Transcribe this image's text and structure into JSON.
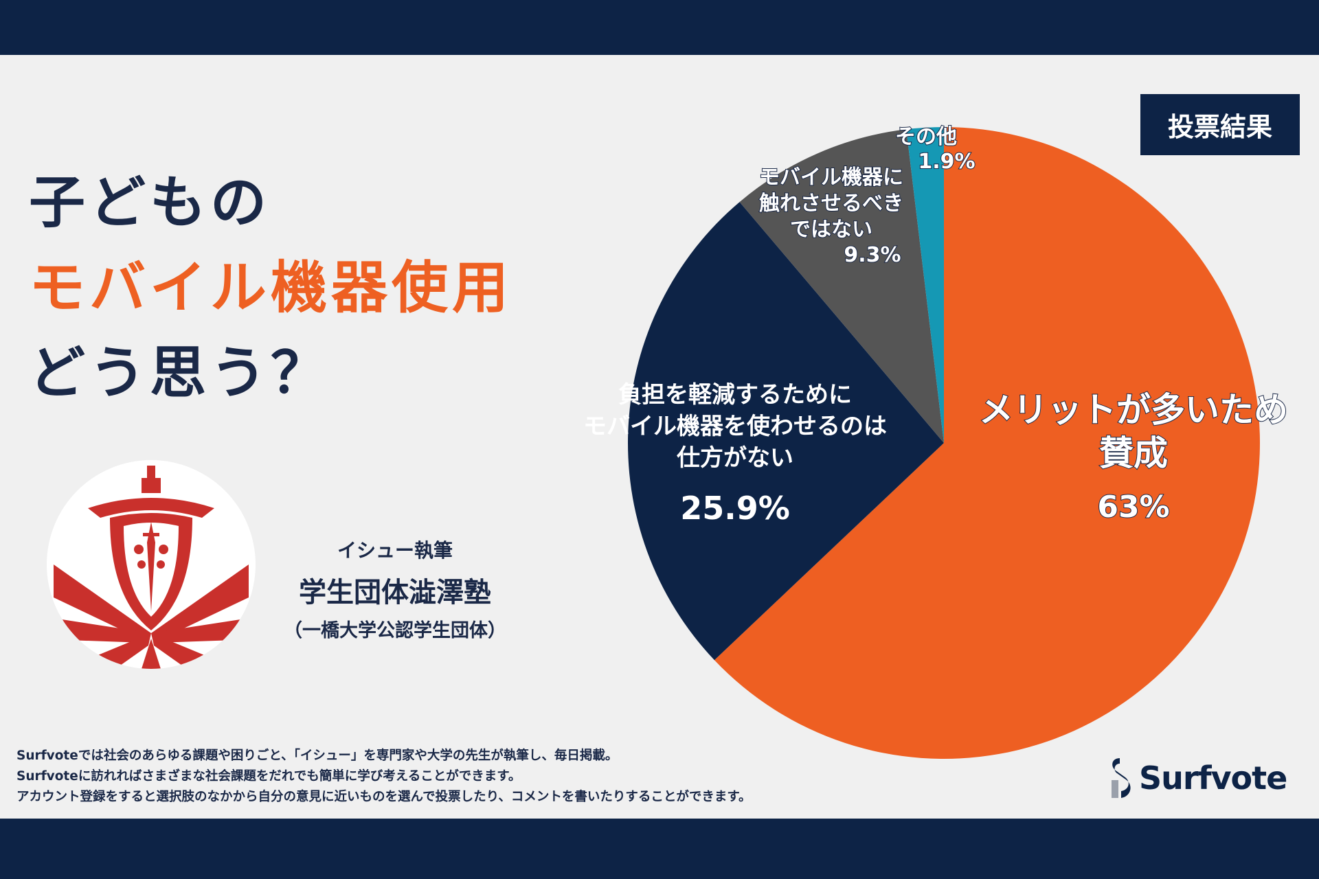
{
  "header": {
    "badge": "投票結果"
  },
  "title": {
    "line1": "子どもの",
    "line2": "モバイル機器使用",
    "line3": "どう思う？"
  },
  "author": {
    "label": "イシュー執筆",
    "name": "学生団体澁澤塾",
    "affiliation": "（一橋大学公認学生団体）"
  },
  "colors": {
    "navy": "#0d2346",
    "orange": "#ee6022",
    "slice_orange": "#ee5f22",
    "slice_navy": "#0d2346",
    "slice_gray": "#555555",
    "slice_teal": "#1598b4",
    "logo_red": "#c9302c"
  },
  "chart_data": {
    "type": "pie",
    "title": "投票結果",
    "slices": [
      {
        "label": "メリットが多いため賛成",
        "label_lines": [
          "メリットが多いため",
          "賛成"
        ],
        "value": 63,
        "display": "63%",
        "color": "#ee5f22"
      },
      {
        "label": "負担を軽減するためにモバイル機器を使わせるのは仕方がない",
        "label_lines": [
          "負担を軽減するために",
          "モバイル機器を使わせるのは",
          "仕方がない"
        ],
        "value": 25.9,
        "display": "25.9%",
        "color": "#0d2346"
      },
      {
        "label": "モバイル機器に触れさせるべきではない",
        "label_lines": [
          "モバイル機器に",
          "触れさせるべき",
          "ではない"
        ],
        "value": 9.3,
        "display": "9.3%",
        "color": "#555555"
      },
      {
        "label": "その他",
        "label_lines": [
          "その他"
        ],
        "value": 1.9,
        "display": "1.9%",
        "color": "#1598b4"
      }
    ]
  },
  "footer": {
    "lines": [
      "Surfvoteでは社会のあらゆる課題や困りごと、「イシュー」を専門家や大学の先生が執筆し、毎日掲載。",
      "Surfvoteに訪れればさまざまな社会課題をだれでも簡単に学び考えることができます。",
      "アカウント登録をすると選択肢のなかから自分の意見に近いものを選んで投票したり、コメントを書いたりすることができます。"
    ]
  },
  "brand": {
    "name": "Surfvote"
  }
}
